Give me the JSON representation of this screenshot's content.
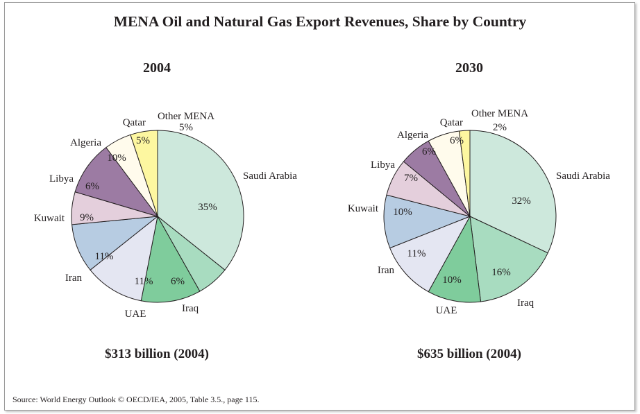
{
  "title": "MENA Oil and Natural Gas Export Revenues, Share by Country",
  "source": "Source: World Energy Outlook © OECD/IEA, 2005, Table 3.5., page 115.",
  "colors": {
    "Saudi Arabia": "#cde8dc",
    "Iraq": "#a8dcc0",
    "UAE": "#7fcc9c",
    "Iran": "#e4e6f2",
    "Kuwait": "#b7cce2",
    "Libya": "#e4cfdc",
    "Algeria": "#9c7ba3",
    "Qatar": "#fffbec",
    "Other MENA": "#fdf7a0"
  },
  "chart_data": [
    {
      "type": "pie",
      "title": "2004",
      "total_label": "$313 billion (2004)",
      "slices": [
        {
          "label": "Saudi Arabia",
          "value": 35,
          "value_label": "35%"
        },
        {
          "label": "Iraq",
          "value": 6,
          "value_label": "6%"
        },
        {
          "label": "UAE",
          "value": 11,
          "value_label": "11%"
        },
        {
          "label": "Iran",
          "value": 11,
          "value_label": "11%"
        },
        {
          "label": "Kuwait",
          "value": 9,
          "value_label": "9%"
        },
        {
          "label": "Libya",
          "value": 6,
          "value_label": "6%"
        },
        {
          "label": "Algeria",
          "value": 10,
          "value_label": "10%"
        },
        {
          "label": "Qatar",
          "value": 5,
          "value_label": "5%"
        },
        {
          "label": "Other MENA",
          "value": 5,
          "value_label": "5%"
        }
      ]
    },
    {
      "type": "pie",
      "title": "2030",
      "total_label": "$635 billion (2004)",
      "slices": [
        {
          "label": "Saudi Arabia",
          "value": 32,
          "value_label": "32%"
        },
        {
          "label": "Iraq",
          "value": 16,
          "value_label": "16%"
        },
        {
          "label": "UAE",
          "value": 10,
          "value_label": "10%"
        },
        {
          "label": "Iran",
          "value": 11,
          "value_label": "11%"
        },
        {
          "label": "Kuwait",
          "value": 10,
          "value_label": "10%"
        },
        {
          "label": "Libya",
          "value": 7,
          "value_label": "7%"
        },
        {
          "label": "Algeria",
          "value": 6,
          "value_label": "6%"
        },
        {
          "label": "Qatar",
          "value": 6,
          "value_label": "6%"
        },
        {
          "label": "Other MENA",
          "value": 2,
          "value_label": "2%"
        }
      ]
    }
  ]
}
